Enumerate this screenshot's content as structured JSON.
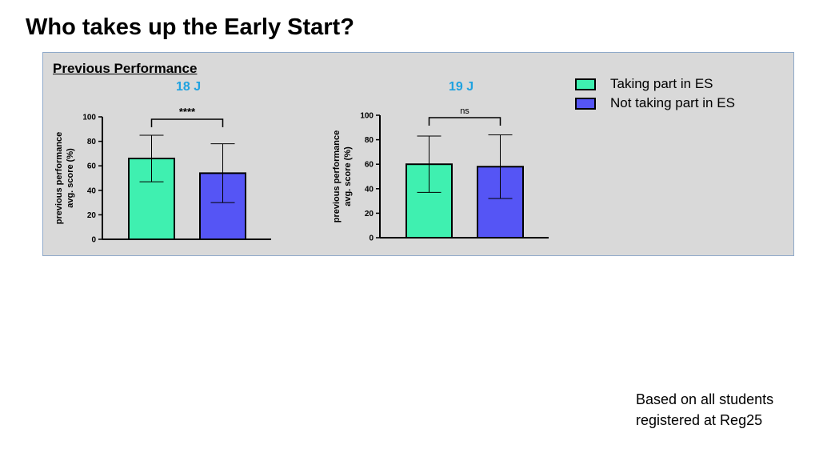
{
  "page": {
    "title": "Who takes up the Early Start?"
  },
  "panel": {
    "subtitle": "Previous Performance",
    "legend": [
      {
        "label": "Taking part in ES",
        "color": "#3ff0b0"
      },
      {
        "label": "Not taking part in ES",
        "color": "#5555f5"
      }
    ]
  },
  "chart_data": [
    {
      "type": "bar",
      "label": "18 J",
      "categories": [
        "Taking part in ES",
        "Not taking part in ES"
      ],
      "values": [
        66,
        54
      ],
      "error_low": [
        47,
        30
      ],
      "error_high": [
        85,
        78
      ],
      "ylabel": [
        "previous performance",
        "avg. score (%)"
      ],
      "ylim": [
        0,
        100
      ],
      "yticks": [
        "0",
        "20",
        "40",
        "60",
        "80",
        "100"
      ],
      "significance": "****",
      "colors": [
        "#3ff0b0",
        "#5555f5"
      ]
    },
    {
      "type": "bar",
      "label": "19 J",
      "categories": [
        "Taking part in ES",
        "Not taking part in ES"
      ],
      "values": [
        60,
        58
      ],
      "error_low": [
        37,
        32
      ],
      "error_high": [
        83,
        84
      ],
      "ylabel": [
        "previous performance",
        "avg. score (%)"
      ],
      "ylim": [
        0,
        100
      ],
      "yticks": [
        "0",
        "20",
        "40",
        "60",
        "80",
        "100"
      ],
      "significance": "ns",
      "colors": [
        "#3ff0b0",
        "#5555f5"
      ]
    }
  ],
  "footnote": {
    "line1": "Based on all students",
    "line2": "registered at Reg25"
  }
}
